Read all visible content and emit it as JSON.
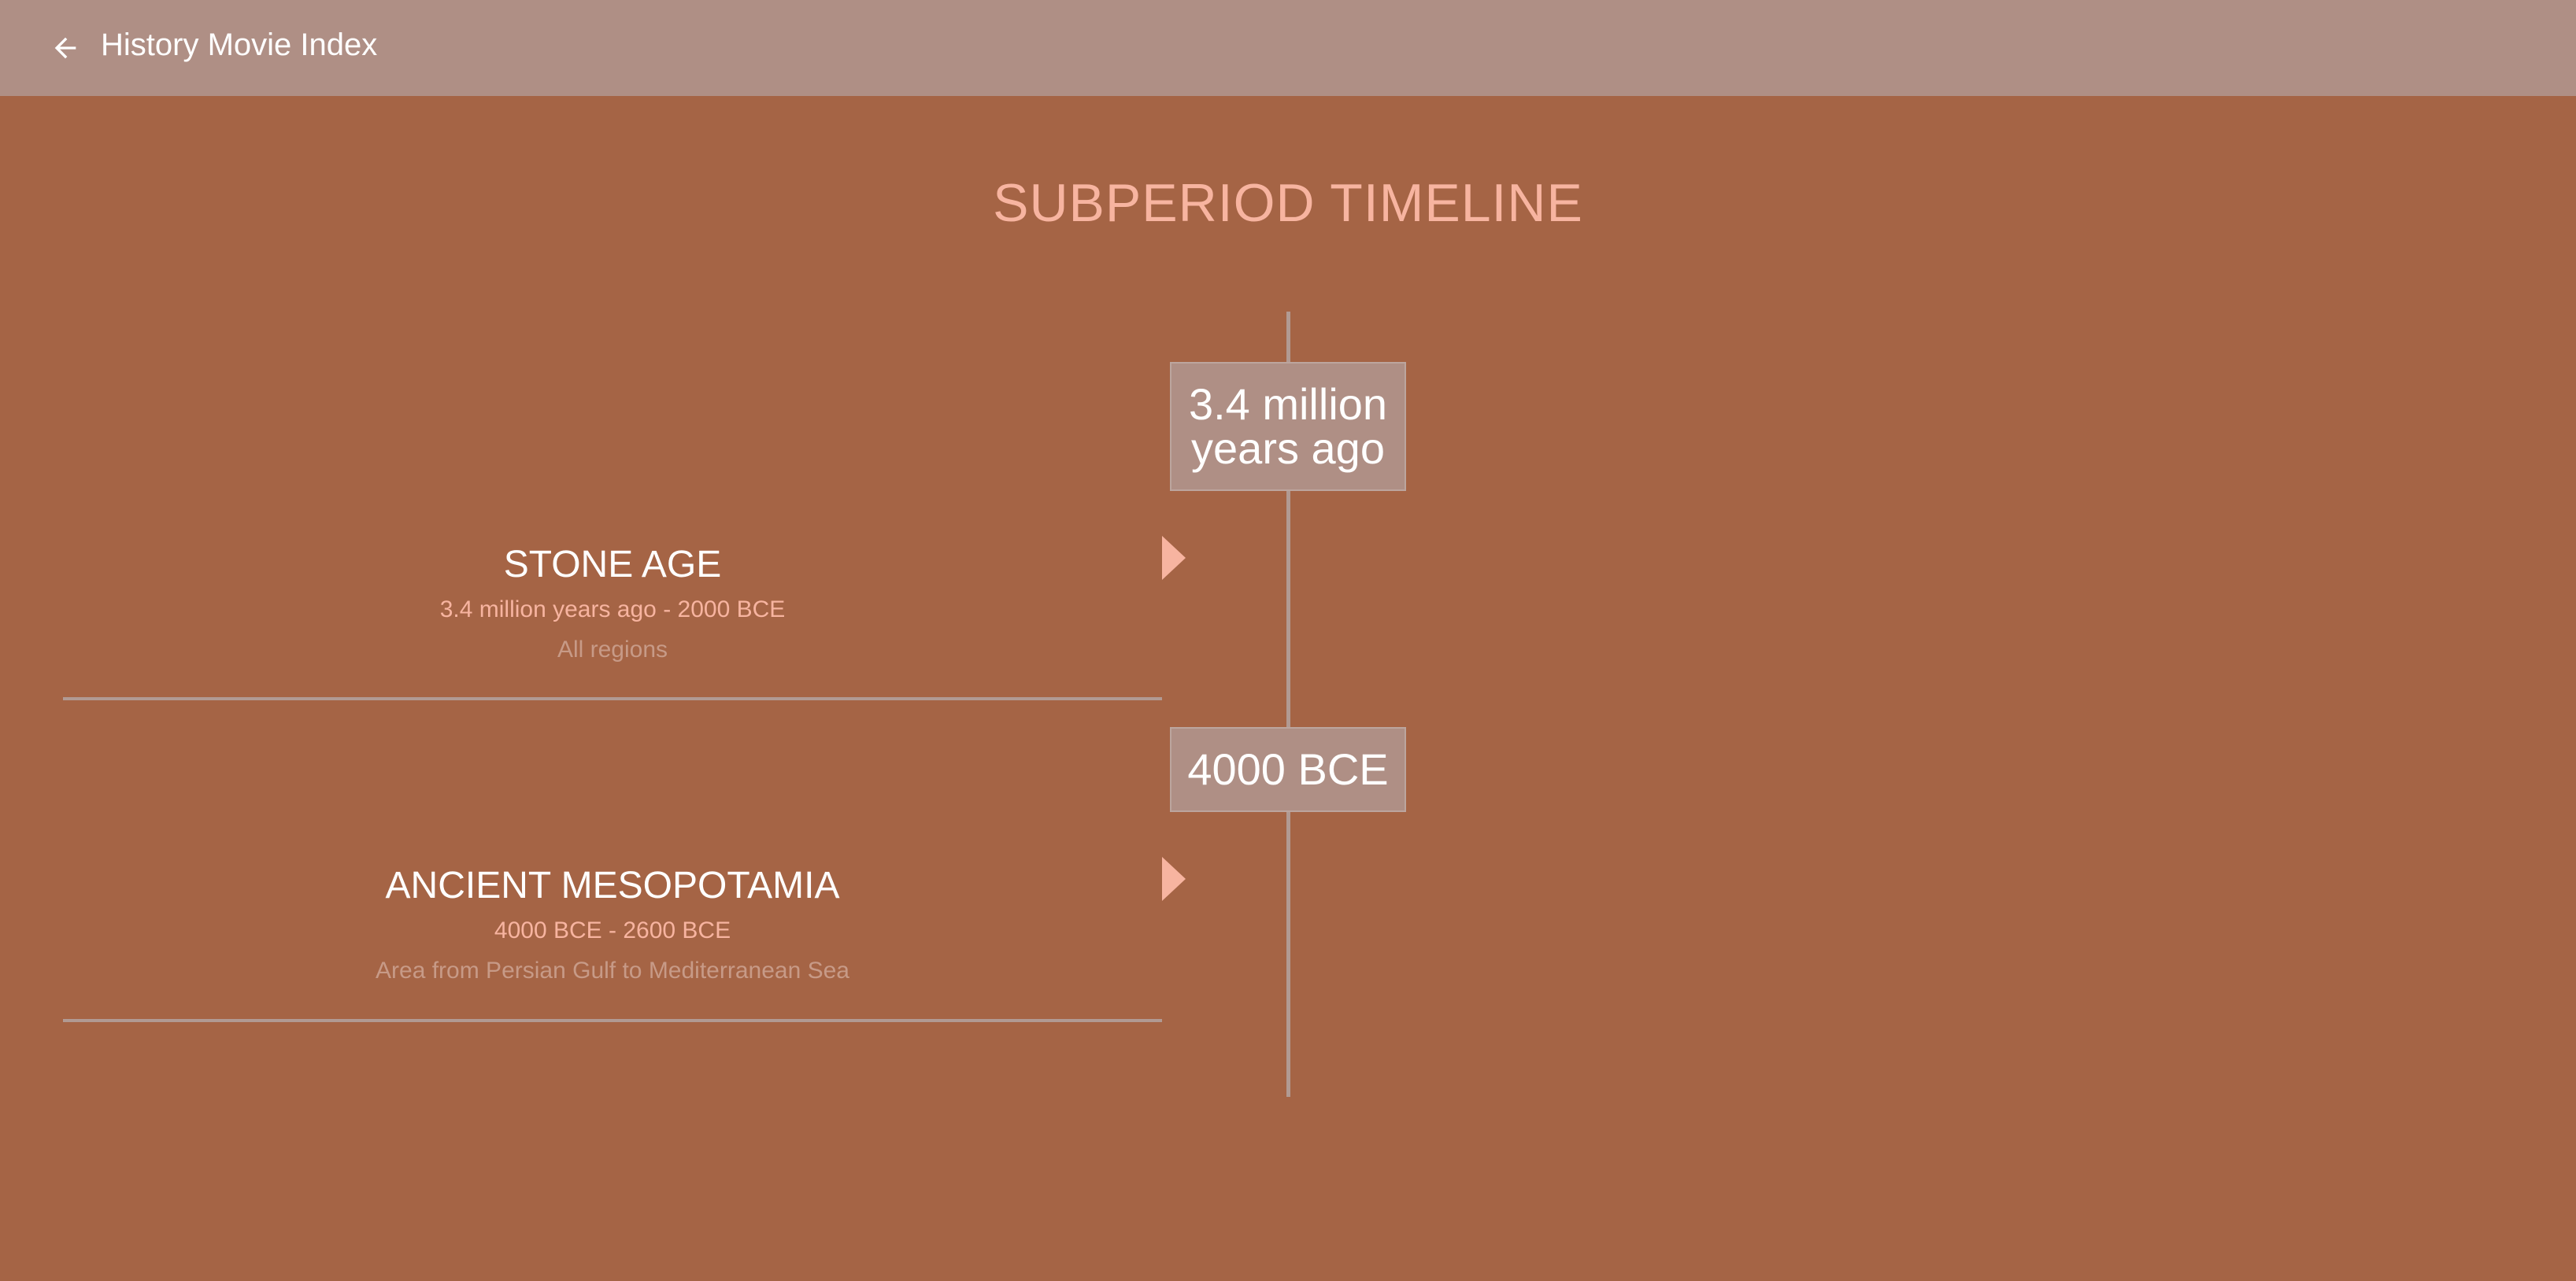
{
  "appbar": {
    "back_icon": "arrow-left-icon",
    "title": "History Movie Index"
  },
  "page": {
    "title": "SUBPERIOD TIMELINE"
  },
  "timeline": {
    "markers": [
      {
        "label": "3.4 million years ago"
      },
      {
        "label": "4000 BCE"
      }
    ],
    "periods": [
      {
        "name": "STONE AGE",
        "range": "3.4 million years ago - 2000 BCE",
        "region": "All regions"
      },
      {
        "name": "ANCIENT MESOPOTAMIA",
        "range": "4000 BCE - 2600 BCE",
        "region": "Area from Persian Gulf to Mediterranean Sea"
      }
    ]
  },
  "colors": {
    "background": "#A56445",
    "appbar": "#AF8F85",
    "accent": "#F7B4A0",
    "line": "#B19A93"
  }
}
